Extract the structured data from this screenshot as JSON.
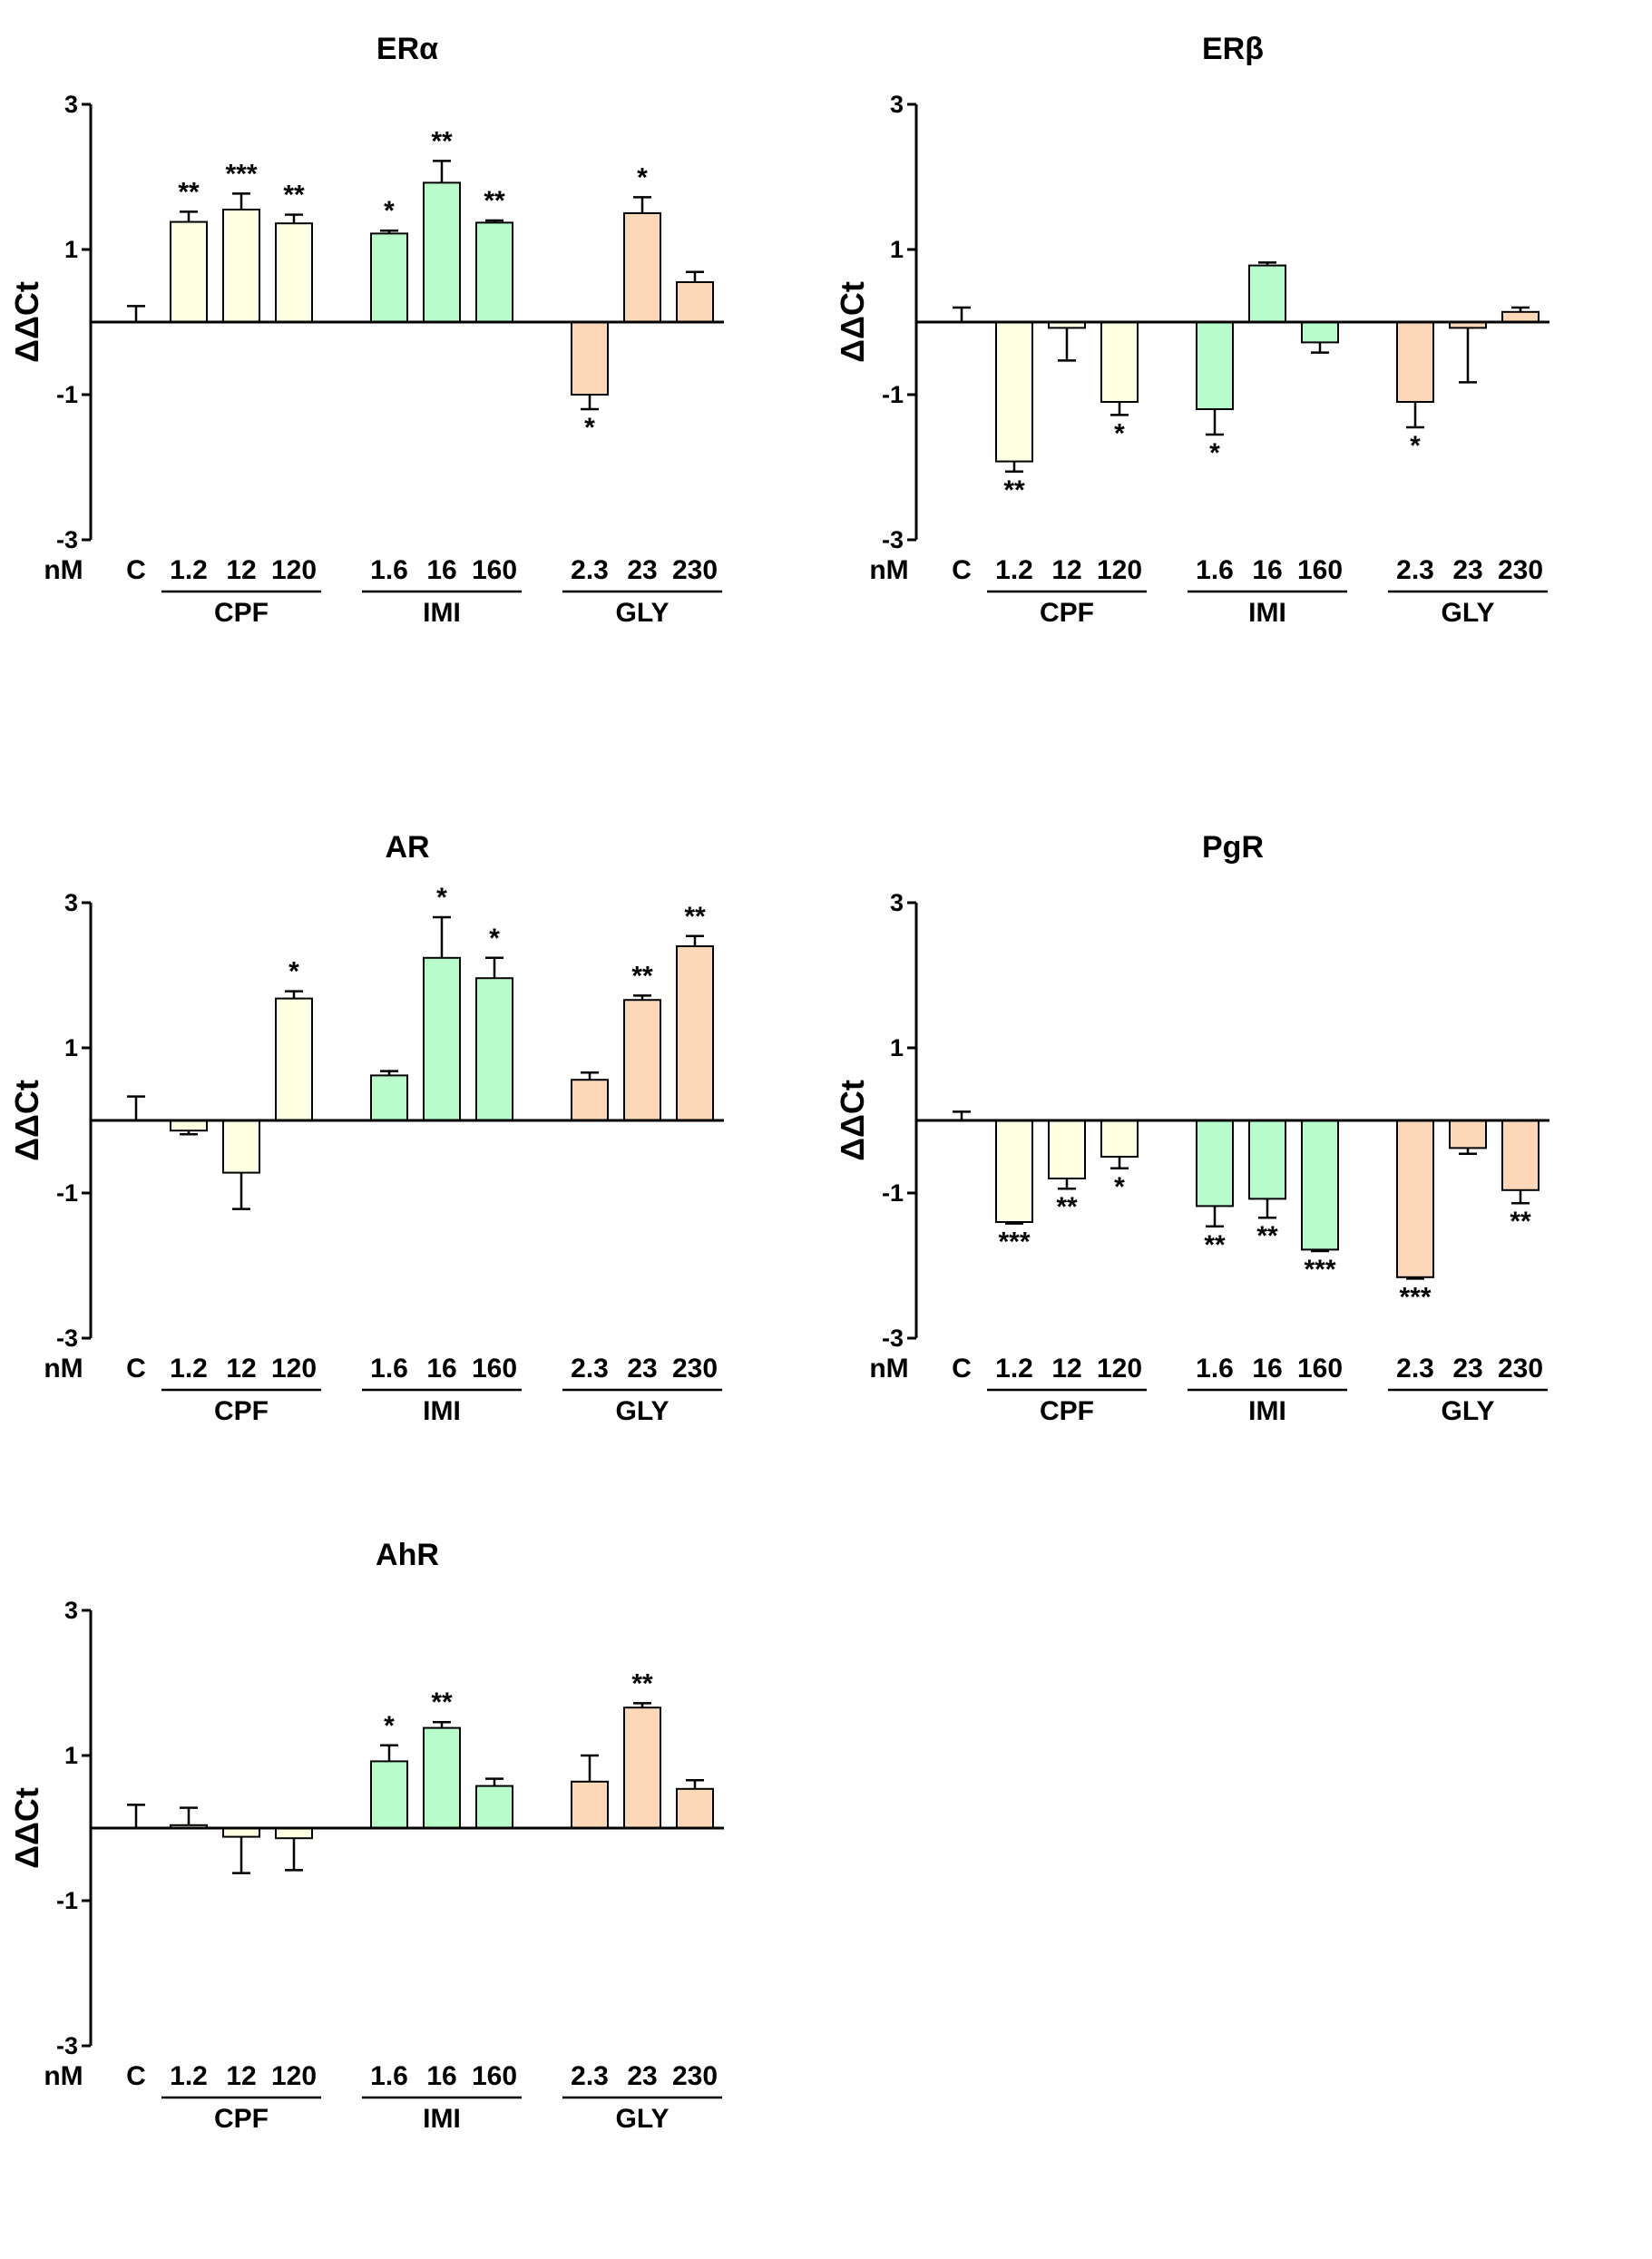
{
  "figure": {
    "unit_label": "nM",
    "ylabel": "ΔΔCt",
    "colors": {
      "CPF": "#ffffe2",
      "IMI": "#b8fccb",
      "GLY": "#fcd8b8",
      "C": "#ffffff",
      "axis": "#000000"
    }
  },
  "chart_data": [
    {
      "type": "bar",
      "title": "ERα",
      "ylabel": "ΔΔCt",
      "ylim": [
        -3,
        3
      ],
      "yticks": [
        -3,
        -1,
        1,
        3
      ],
      "categories": [
        "C",
        "1.2",
        "12",
        "120",
        "1.6",
        "16",
        "160",
        "2.3",
        "23",
        "230"
      ],
      "groups": [
        {
          "label": "CPF",
          "members": [
            1,
            2,
            3
          ]
        },
        {
          "label": "IMI",
          "members": [
            4,
            5,
            6
          ]
        },
        {
          "label": "GLY",
          "members": [
            7,
            8,
            9
          ]
        }
      ],
      "values": [
        0.0,
        1.38,
        1.55,
        1.36,
        1.22,
        1.92,
        1.37,
        -1.0,
        1.5,
        0.55
      ],
      "errors": [
        0.22,
        0.14,
        0.22,
        0.12,
        0.04,
        0.3,
        0.03,
        0.2,
        0.22,
        0.14
      ],
      "significance": [
        "",
        "**",
        "***",
        "**",
        "*",
        "**",
        "**",
        "*",
        "*",
        ""
      ]
    },
    {
      "type": "bar",
      "title": "ERβ",
      "ylabel": "ΔΔCt",
      "ylim": [
        -3,
        3
      ],
      "yticks": [
        -3,
        -1,
        1,
        3
      ],
      "categories": [
        "C",
        "1.2",
        "12",
        "120",
        "1.6",
        "16",
        "160",
        "2.3",
        "23",
        "230"
      ],
      "groups": [
        {
          "label": "CPF",
          "members": [
            1,
            2,
            3
          ]
        },
        {
          "label": "IMI",
          "members": [
            4,
            5,
            6
          ]
        },
        {
          "label": "GLY",
          "members": [
            7,
            8,
            9
          ]
        }
      ],
      "values": [
        0.0,
        -1.92,
        -0.08,
        -1.1,
        -1.2,
        0.78,
        -0.28,
        -1.1,
        -0.08,
        0.14
      ],
      "errors": [
        0.2,
        0.14,
        0.45,
        0.18,
        0.35,
        0.04,
        0.14,
        0.35,
        0.75,
        0.06
      ],
      "significance": [
        "",
        "**",
        "",
        "*",
        "*",
        "",
        "",
        "*",
        "",
        ""
      ]
    },
    {
      "type": "bar",
      "title": "AR",
      "ylabel": "ΔΔCt",
      "ylim": [
        -3,
        3
      ],
      "yticks": [
        -3,
        -1,
        1,
        3
      ],
      "categories": [
        "C",
        "1.2",
        "12",
        "120",
        "1.6",
        "16",
        "160",
        "2.3",
        "23",
        "230"
      ],
      "groups": [
        {
          "label": "CPF",
          "members": [
            1,
            2,
            3
          ]
        },
        {
          "label": "IMI",
          "members": [
            4,
            5,
            6
          ]
        },
        {
          "label": "GLY",
          "members": [
            7,
            8,
            9
          ]
        }
      ],
      "values": [
        0.0,
        -0.14,
        -0.72,
        1.68,
        0.62,
        2.24,
        1.96,
        0.56,
        1.66,
        2.4
      ],
      "errors": [
        0.33,
        0.05,
        0.5,
        0.1,
        0.06,
        0.56,
        0.28,
        0.1,
        0.06,
        0.14
      ],
      "significance": [
        "",
        "",
        "",
        "*",
        "",
        "*",
        "*",
        "",
        "**",
        "**"
      ]
    },
    {
      "type": "bar",
      "title": "PgR",
      "ylabel": "ΔΔCt",
      "ylim": [
        -3,
        3
      ],
      "yticks": [
        -3,
        -1,
        1,
        3
      ],
      "categories": [
        "C",
        "1.2",
        "12",
        "120",
        "1.6",
        "16",
        "160",
        "2.3",
        "23",
        "230"
      ],
      "groups": [
        {
          "label": "CPF",
          "members": [
            1,
            2,
            3
          ]
        },
        {
          "label": "IMI",
          "members": [
            4,
            5,
            6
          ]
        },
        {
          "label": "GLY",
          "members": [
            7,
            8,
            9
          ]
        }
      ],
      "values": [
        0.0,
        -1.4,
        -0.8,
        -0.5,
        -1.18,
        -1.08,
        -1.78,
        -2.16,
        -0.38,
        -0.96
      ],
      "errors": [
        0.12,
        0.02,
        0.14,
        0.16,
        0.28,
        0.26,
        0.02,
        0.02,
        0.08,
        0.18
      ],
      "significance": [
        "",
        "***",
        "**",
        "*",
        "**",
        "**",
        "***",
        "***",
        "",
        "**"
      ]
    },
    {
      "type": "bar",
      "title": "AhR",
      "ylabel": "ΔΔCt",
      "ylim": [
        -3,
        3
      ],
      "yticks": [
        -3,
        -1,
        1,
        3
      ],
      "categories": [
        "C",
        "1.2",
        "12",
        "120",
        "1.6",
        "16",
        "160",
        "2.3",
        "23",
        "230"
      ],
      "groups": [
        {
          "label": "CPF",
          "members": [
            1,
            2,
            3
          ]
        },
        {
          "label": "IMI",
          "members": [
            4,
            5,
            6
          ]
        },
        {
          "label": "GLY",
          "members": [
            7,
            8,
            9
          ]
        }
      ],
      "values": [
        0.0,
        0.04,
        -0.12,
        -0.14,
        0.92,
        1.38,
        0.58,
        0.64,
        1.66,
        0.54
      ],
      "errors": [
        0.32,
        0.24,
        0.5,
        0.44,
        0.22,
        0.08,
        0.1,
        0.36,
        0.06,
        0.12
      ],
      "significance": [
        "",
        "",
        "",
        "",
        "*",
        "**",
        "",
        "",
        "**",
        ""
      ]
    }
  ]
}
